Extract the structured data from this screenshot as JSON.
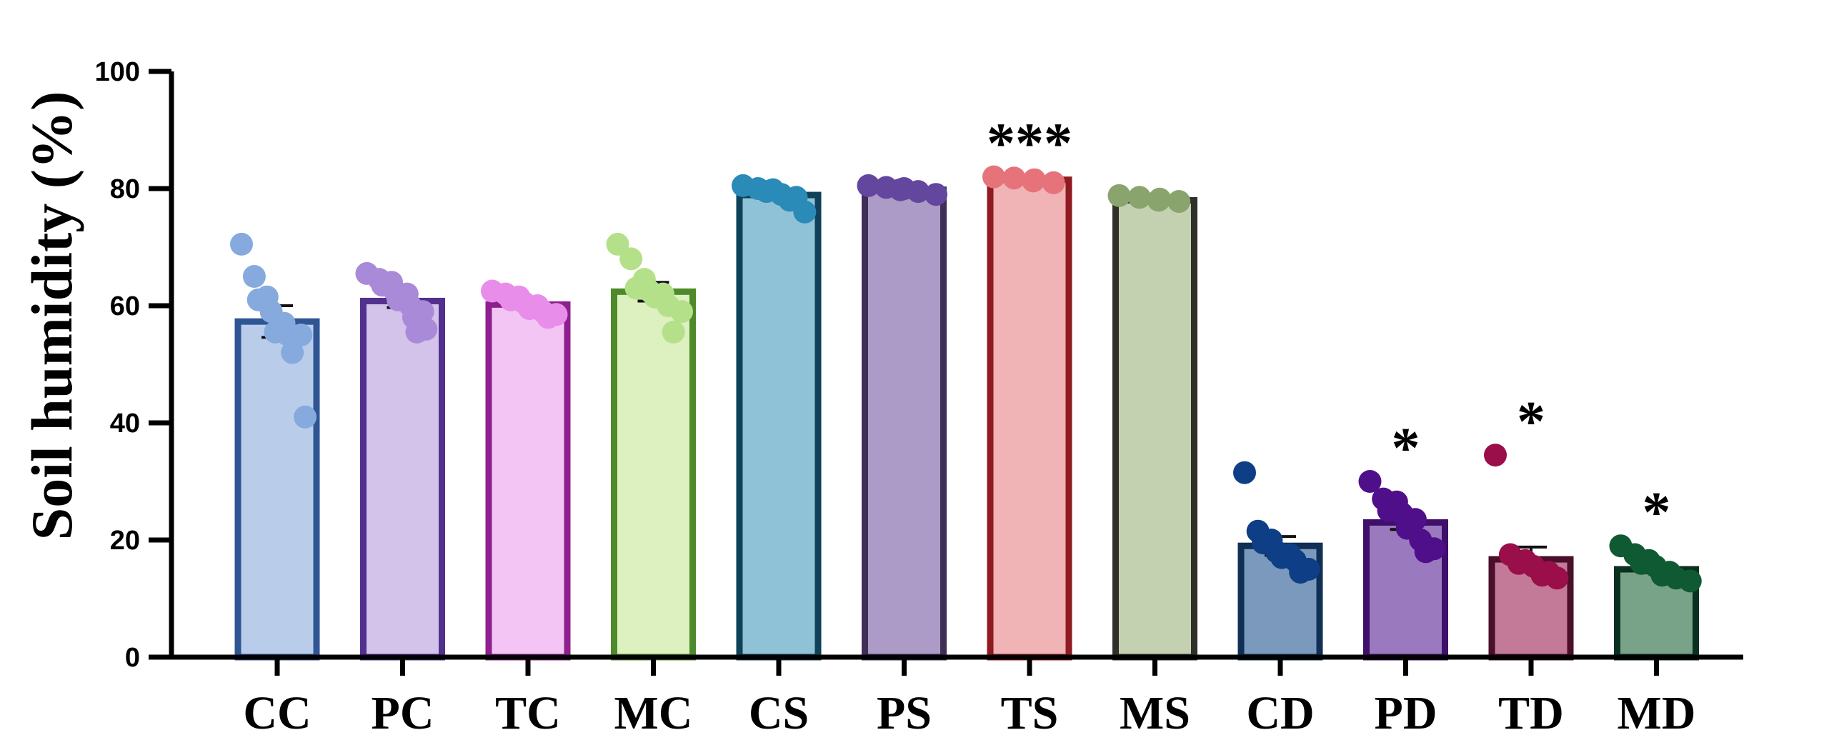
{
  "chart_data": {
    "type": "bar",
    "ylabel": "Soil humidity (%)",
    "xlabel": "",
    "ylim": [
      0,
      100
    ],
    "yticks": [
      0,
      20,
      40,
      60,
      80,
      100
    ],
    "categories": [
      "CC",
      "PC",
      "TC",
      "MC",
      "CS",
      "PS",
      "TS",
      "MS",
      "CD",
      "PD",
      "TD",
      "MD"
    ],
    "values": [
      57.3,
      60.8,
      60.2,
      62.4,
      78.9,
      79.8,
      81.5,
      78.0,
      19.0,
      23.0,
      16.7,
      15.0
    ],
    "sem": [
      2.7,
      1.1,
      0.5,
      1.6,
      0.5,
      0.2,
      0.2,
      0.2,
      1.6,
      1.2,
      2.1,
      0.6
    ],
    "points": [
      [
        70.5,
        65.0,
        61.5,
        61.0,
        59.0,
        57.0,
        55.5,
        55.0,
        55.0,
        52.0,
        41.0
      ],
      [
        65.5,
        64.5,
        64.0,
        63.5,
        62.5,
        62.0,
        61.0,
        60.0,
        59.0,
        58.0,
        56.0,
        55.5
      ],
      [
        62.5,
        62.0,
        61.5,
        61.0,
        60.5,
        60.0,
        59.5,
        59.0,
        58.5,
        58.0
      ],
      [
        70.5,
        68.0,
        64.5,
        63.0,
        62.5,
        62.0,
        61.5,
        60.0,
        59.0,
        55.5
      ],
      [
        80.5,
        80.0,
        79.8,
        79.5,
        79.0,
        78.5,
        78.0,
        76.0
      ],
      [
        80.5,
        80.2,
        80.0,
        79.8,
        79.5,
        79.0
      ],
      [
        82.0,
        81.8,
        81.5,
        81.3,
        81.0
      ],
      [
        78.8,
        78.5,
        78.2,
        78.0,
        77.8
      ],
      [
        31.5,
        21.5,
        20.0,
        19.5,
        18.0,
        17.5,
        17.0,
        16.5,
        15.0,
        14.5
      ],
      [
        30.0,
        27.0,
        26.5,
        25.0,
        24.5,
        23.5,
        22.0,
        20.0,
        18.5,
        18.0
      ],
      [
        34.5,
        17.5,
        16.5,
        16.0,
        15.5,
        14.5,
        14.0,
        13.5
      ],
      [
        19.0,
        17.5,
        16.5,
        16.0,
        15.5,
        14.5,
        14.0,
        13.5,
        13.0
      ]
    ],
    "significance": [
      "",
      "",
      "",
      "",
      "",
      "",
      "***",
      "",
      "",
      "*",
      "*",
      "*"
    ],
    "fill_colors": [
      "#b9cdea",
      "#d3c2e9",
      "#f3c5f5",
      "#dcf0c0",
      "#8fc2d6",
      "#ab9bc6",
      "#f0b3b6",
      "#c4d1b0",
      "#7a99bd",
      "#9a79be",
      "#c27a98",
      "#78a389"
    ],
    "edge_colors": [
      "#2f5593",
      "#52308e",
      "#8e1f8e",
      "#4e8a2a",
      "#0f4259",
      "#3f2f57",
      "#8f1a21",
      "#2f2f2b",
      "#0f2f55",
      "#3f0f6a",
      "#4a0f2a",
      "#0a3020"
    ],
    "dot_colors": [
      "#86aade",
      "#a98ad9",
      "#e88eea",
      "#b4e08a",
      "#2a8ab8",
      "#63469e",
      "#e6727a",
      "#8aa46e",
      "#0e3f86",
      "#4f0f8a",
      "#9a0f4a",
      "#0f5a32"
    ],
    "grid": false,
    "legend": "none"
  }
}
